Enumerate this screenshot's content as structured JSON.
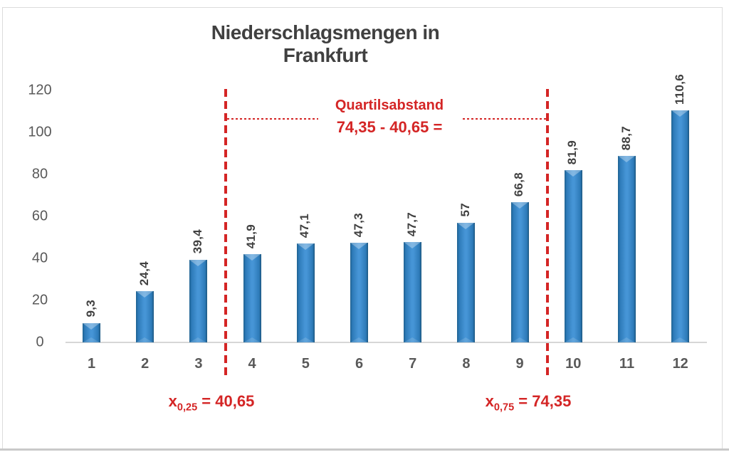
{
  "chart_data": {
    "type": "bar",
    "title": "Niederschlagsmengen in Frankfurt",
    "categories": [
      "1",
      "2",
      "3",
      "4",
      "5",
      "6",
      "7",
      "8",
      "9",
      "10",
      "11",
      "12"
    ],
    "values": [
      9.3,
      24.4,
      39.4,
      41.9,
      47.1,
      47.3,
      47.7,
      57,
      66.8,
      81.9,
      88.7,
      110.6
    ],
    "value_labels": [
      "9,3",
      "24,4",
      "39,4",
      "41,9",
      "47,1",
      "47,3",
      "47,7",
      "57",
      "66,8",
      "81,9",
      "88,7",
      "110,6"
    ],
    "xlabel": "",
    "ylabel": "",
    "ylim": [
      0,
      120
    ],
    "yticks": [
      "0",
      "20",
      "40",
      "60",
      "80",
      "100",
      "120"
    ],
    "grid": false,
    "legend": false,
    "bar_style": "3d-bevel",
    "annotations": {
      "iqr_title": "Quartilsabstand",
      "iqr_formula": "74,35 - 40,65 =",
      "lower_quartile": {
        "base": "x",
        "sub": "0,25",
        "rest": " = 40,65"
      },
      "upper_quartile": {
        "base": "x",
        "sub": "0,75",
        "rest": " = 74,35"
      },
      "lower_boundary_between_categories": [
        "3",
        "4"
      ],
      "upper_boundary_between_categories": [
        "9",
        "10"
      ]
    },
    "colors": {
      "bar_fill": "#2e7cbe",
      "bar_highlight": "#4695d6",
      "bar_shadow": "#1c567f",
      "annotation_red": "#d42525",
      "title_text": "#404040",
      "axis_text": "#595959",
      "axis_line": "#d6d6d6"
    }
  }
}
